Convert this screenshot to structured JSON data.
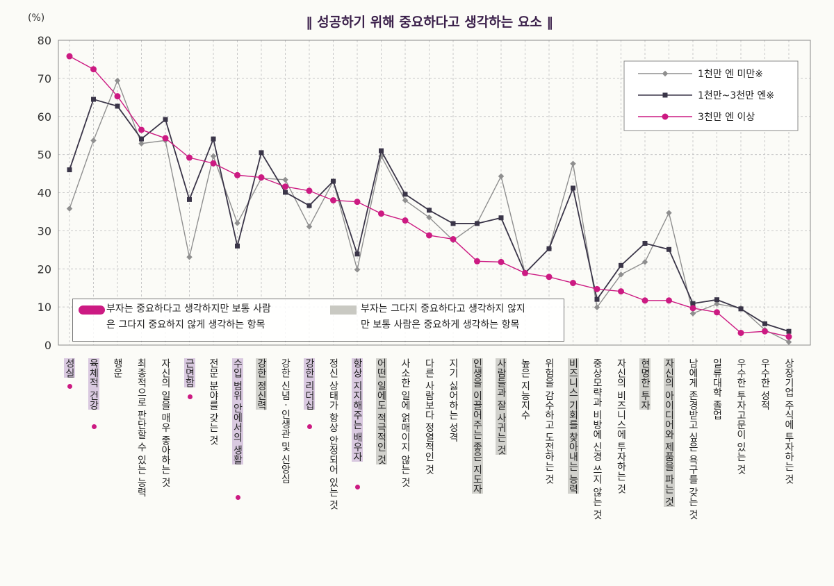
{
  "chart_data": {
    "type": "line",
    "title": "성공하기 위해 중요하다고 생각하는 요소",
    "ylabel": "(%)",
    "ylim": [
      0,
      80
    ],
    "yticks": [
      0,
      10,
      20,
      30,
      40,
      50,
      60,
      70,
      80
    ],
    "grid": true,
    "legend_position": "top-right",
    "categories": [
      "성실",
      "육체적 건강",
      "행운",
      "최종적으로 판단할 수 있는 능력",
      "자신의 일을 매우 좋아하는 것",
      "근면함",
      "전문 분야를 갖는 것",
      "수입 범위 안에서의 생활",
      "강한 정신력",
      "강한 신념 · 인생관 및 신앙심",
      "강한 리더십",
      "정신 상태가 항상 안정되어 있는 것",
      "항상 지지해주는 배우자",
      "어떤 일에도 적극적인 것",
      "사소한 일에 얽매이지 않는 것",
      "다른 사람보다 정열적인 것",
      "지기 싫어하는 성격",
      "인생을 이끌어주는 좋은 지도자",
      "사람들과 잘 사귀는 것",
      "높은 지능지수",
      "위험을 감수하고 도전하는 것",
      "비즈니스 기회를 찾아내는 능력",
      "중상모략과 비방에 신경 쓰지 않는 것",
      "자신의 비즈니스에 투자하는 것",
      "현명한 투자",
      "자신의 아이디어와 제품을 파는 것",
      "남에게 존경받고 싶은 욕구를 갖는 것",
      "일류대학 졸업",
      "우수한 투자고문이 있는 것",
      "우수한 성적",
      "상장기업 주식에 투자하는 것"
    ],
    "series": [
      {
        "name": "1천만 엔 미만※",
        "color": "#8f8f8f",
        "marker": "diamond",
        "values": [
          35.8,
          53.7,
          69.4,
          52.9,
          53.7,
          23.1,
          49.6,
          32.0,
          43.8,
          43.4,
          31.1,
          43.0,
          19.8,
          49.6,
          38.0,
          33.5,
          27.5,
          32.0,
          44.3,
          18.9,
          25.3,
          47.6,
          9.9,
          18.5,
          21.8,
          34.7,
          8.3,
          10.8,
          9.7,
          4.0,
          0.8
        ]
      },
      {
        "name": "1천만~3천만 엔※",
        "color": "#3a3548",
        "marker": "square",
        "values": [
          46.0,
          64.5,
          62.7,
          54.1,
          59.2,
          38.2,
          54.1,
          26.0,
          50.5,
          40.1,
          36.6,
          43.0,
          23.9,
          51.0,
          39.6,
          35.4,
          31.9,
          31.9,
          33.4,
          18.9,
          25.3,
          41.2,
          12.0,
          20.9,
          26.7,
          25.1,
          10.9,
          11.9,
          9.5,
          5.6,
          3.6
        ]
      },
      {
        "name": "3천만 엔 이상",
        "color": "#cc1a82",
        "marker": "circle",
        "values": [
          75.8,
          72.4,
          65.3,
          56.5,
          54.3,
          49.2,
          47.7,
          44.6,
          44.0,
          41.6,
          40.5,
          38.0,
          37.6,
          34.5,
          32.7,
          28.8,
          27.8,
          22.0,
          21.8,
          18.9,
          17.9,
          16.3,
          14.7,
          14.1,
          11.7,
          11.7,
          9.7,
          8.6,
          3.2,
          3.6,
          2.2
        ]
      }
    ],
    "highlight_pink": [
      0,
      1,
      5,
      7,
      10,
      12
    ],
    "highlight_gray": [
      8,
      13,
      17,
      18,
      21,
      24,
      25
    ],
    "notes": {
      "pink": "부자는 중요하다고 생각하지만 보통 사람은 그다지 중요하지 않게 생각하는 항목",
      "gray": "부자는 그다지 중요하다고 생각하지 않지만 보통 사람은 중요하게 생각하는 항목"
    }
  },
  "ui": {
    "title_text": "성공하기 위해 중요하다고 생각하는 요소",
    "note_pink_line1": "부자는 중요하다고 생각하지만 보통 사람",
    "note_pink_line2": "은 그다지 중요하지 않게 생각하는 항목",
    "note_gray_line1": "부자는 그다지 중요하다고 생각하지 않지",
    "note_gray_line2": "만 보통 사람은 중요하게 생각하는 항목"
  }
}
